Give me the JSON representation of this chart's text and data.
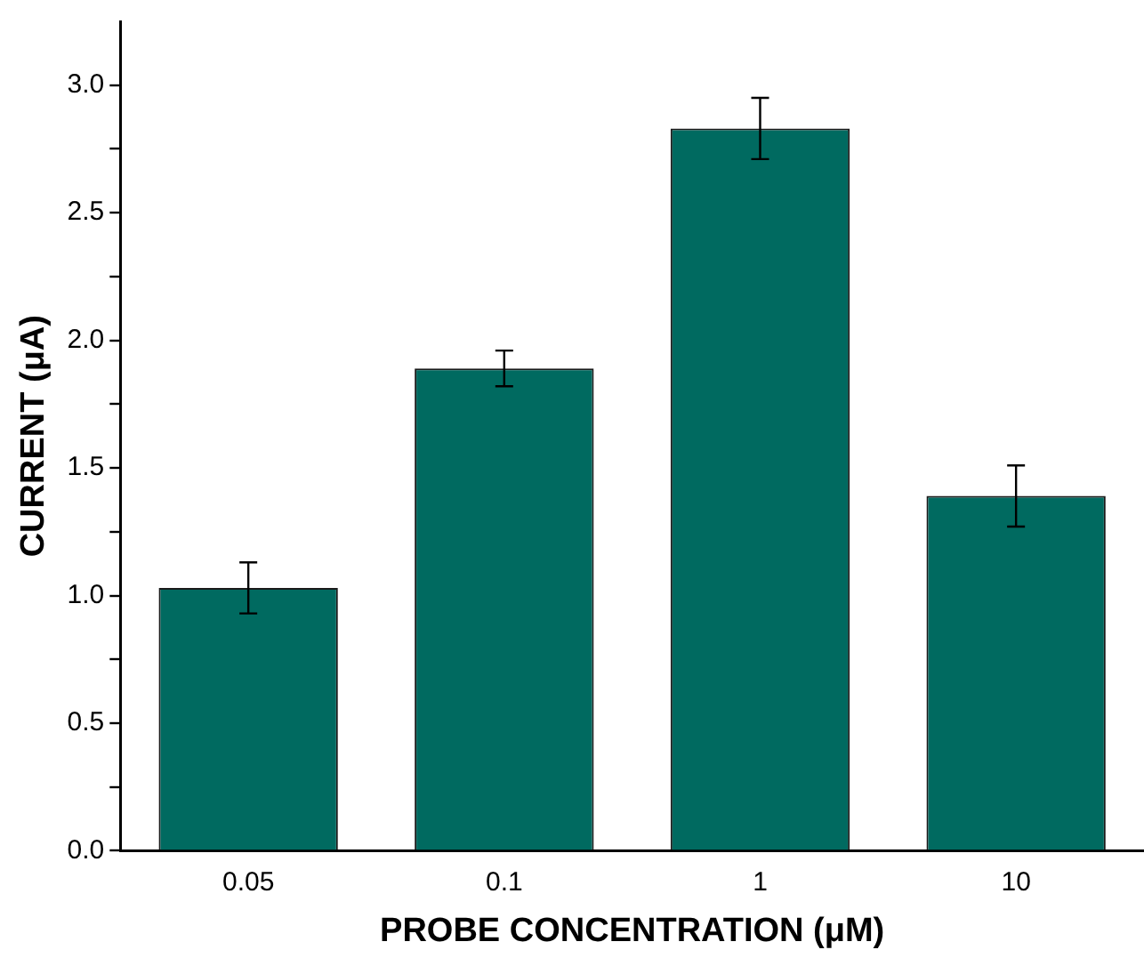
{
  "chart_data": {
    "type": "bar",
    "xlabel": "PROBE CONCENTRATION (μM)",
    "ylabel": "CURRENT (μA)",
    "categories": [
      "0.05",
      "0.1",
      "1",
      "10"
    ],
    "values": [
      1.03,
      1.89,
      2.83,
      1.39
    ],
    "errors": [
      0.1,
      0.07,
      0.12,
      0.12
    ],
    "color": "#006a60",
    "ylim": [
      0,
      3.25
    ],
    "yticks": [
      {
        "value": 0,
        "label": "0.0"
      },
      {
        "value": 0.25,
        "label": null
      },
      {
        "value": 0.5,
        "label": "0.5"
      },
      {
        "value": 0.75,
        "label": null
      },
      {
        "value": 1,
        "label": "1.0"
      },
      {
        "value": 1.25,
        "label": null
      },
      {
        "value": 1.5,
        "label": "1.5"
      },
      {
        "value": 1.75,
        "label": null
      },
      {
        "value": 2,
        "label": "2.0"
      },
      {
        "value": 2.25,
        "label": null
      },
      {
        "value": 2.5,
        "label": "2.5"
      },
      {
        "value": 2.75,
        "label": null
      },
      {
        "value": 3,
        "label": "3.0"
      }
    ],
    "grid": false,
    "legend": false
  }
}
